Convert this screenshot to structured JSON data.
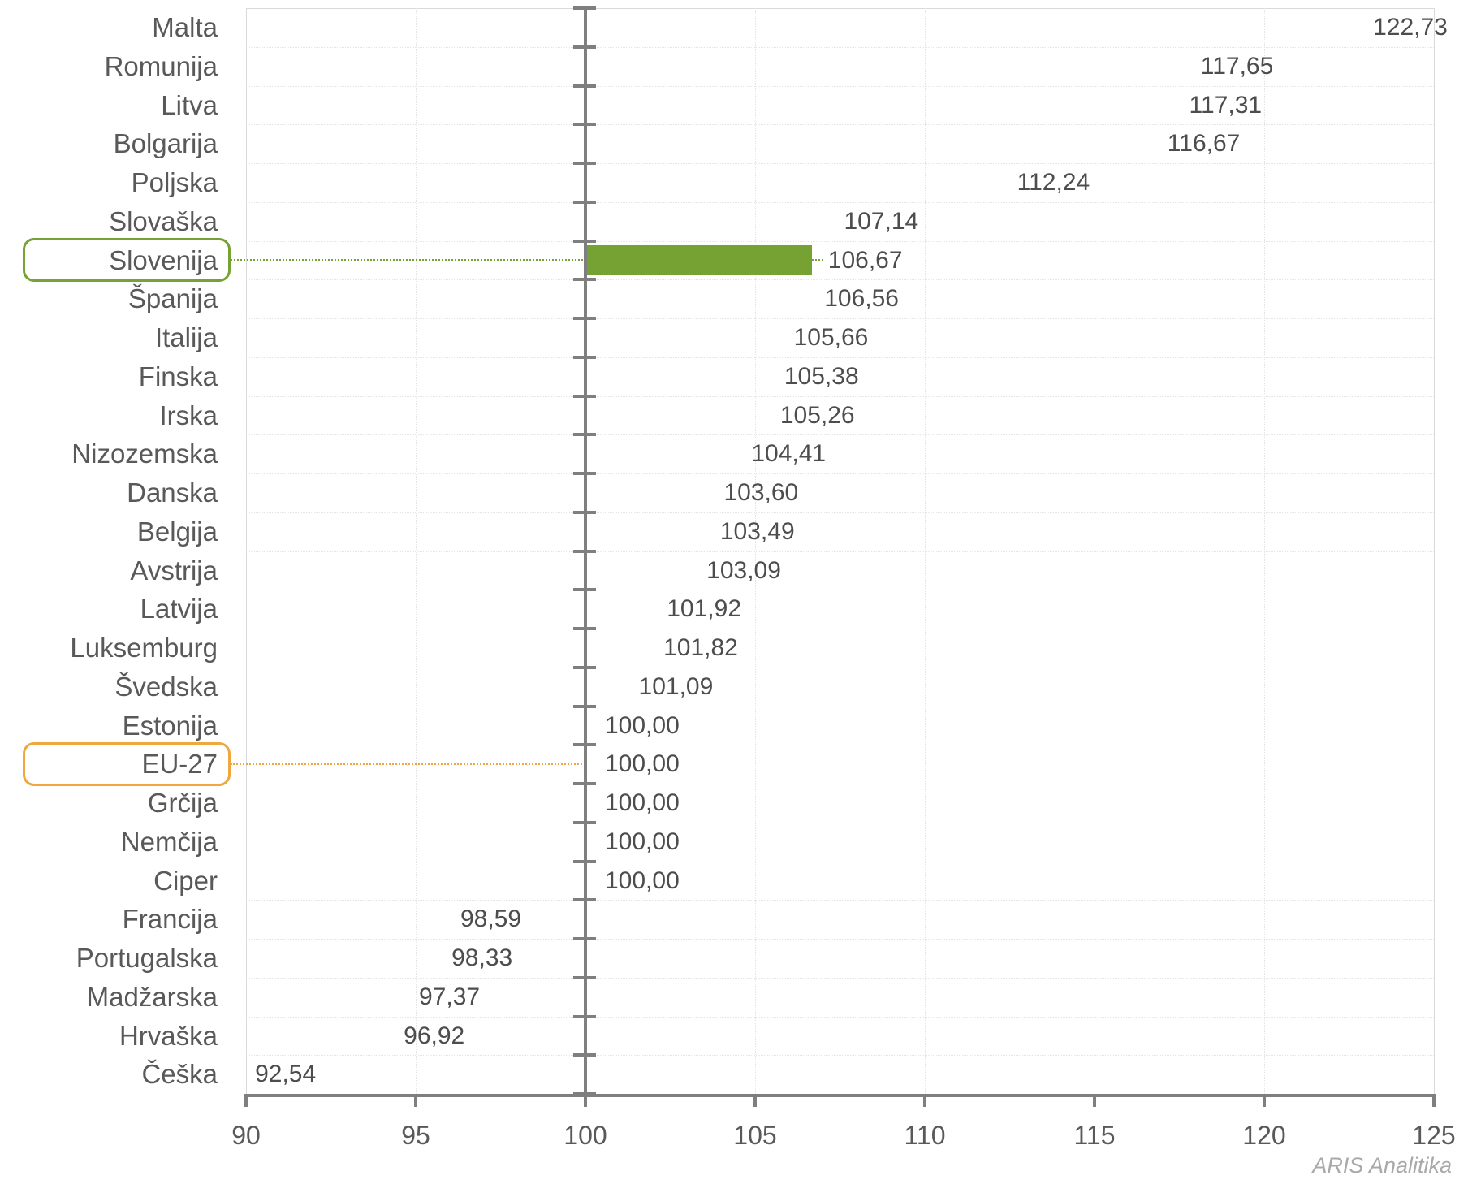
{
  "watermark": "ARIS Analitika",
  "colors": {
    "bar_blue": "#4673AF",
    "highlight_green": "#76A233",
    "highlight_orange": "#F0A73E",
    "category_text": "#595959",
    "value_text": "#4D4D4D",
    "axis_text": "#595959",
    "axis_line": "#7F7F7F",
    "grid_line": "#E4E4E4",
    "plot_border": "#D9D9D9",
    "watermark_text": "#A9A9A9"
  },
  "chart_data": {
    "type": "bar",
    "orientation": "horizontal",
    "title": "",
    "xlabel": "",
    "ylabel": "",
    "xlim": [
      90,
      125
    ],
    "baseline": 100,
    "grid": "dotted",
    "legend": "none",
    "x_ticks": [
      90,
      95,
      100,
      105,
      110,
      115,
      120,
      125
    ],
    "x_tick_labels": [
      "90",
      "95",
      "100",
      "105",
      "110",
      "115",
      "120",
      "125"
    ],
    "categories": [
      "Malta",
      "Romunija",
      "Litva",
      "Bolgarija",
      "Poljska",
      "Slovaška",
      "Slovenija",
      "Španija",
      "Italija",
      "Finska",
      "Irska",
      "Nizozemska",
      "Danska",
      "Belgija",
      "Avstrija",
      "Latvija",
      "Luksemburg",
      "Švedska",
      "Estonija",
      "EU-27",
      "Grčija",
      "Nemčija",
      "Ciper",
      "Francija",
      "Portugalska",
      "Madžarska",
      "Hrvaška",
      "Češka"
    ],
    "values": [
      122.73,
      117.65,
      117.31,
      116.67,
      112.24,
      107.14,
      106.67,
      106.56,
      105.66,
      105.38,
      105.26,
      104.41,
      103.6,
      103.49,
      103.09,
      101.92,
      101.82,
      101.09,
      100.0,
      100.0,
      100.0,
      100.0,
      100.0,
      98.59,
      98.33,
      97.37,
      96.92,
      92.54
    ],
    "value_labels": [
      "122,73",
      "117,65",
      "117,31",
      "116,67",
      "112,24",
      "107,14",
      "106,67",
      "106,56",
      "105,66",
      "105,38",
      "105,26",
      "104,41",
      "103,60",
      "103,49",
      "103,09",
      "101,92",
      "101,82",
      "101,09",
      "100,00",
      "100,00",
      "100,00",
      "100,00",
      "100,00",
      "98,59",
      "98,33",
      "97,37",
      "96,92",
      "92,54"
    ],
    "highlights": [
      {
        "category": "Slovenija",
        "bar_color": "#76A233",
        "box_border_color": "#76A233",
        "connector": "to-value"
      },
      {
        "category": "EU-27",
        "box_border_color": "#F0A73E",
        "connector": "to-baseline"
      }
    ]
  }
}
